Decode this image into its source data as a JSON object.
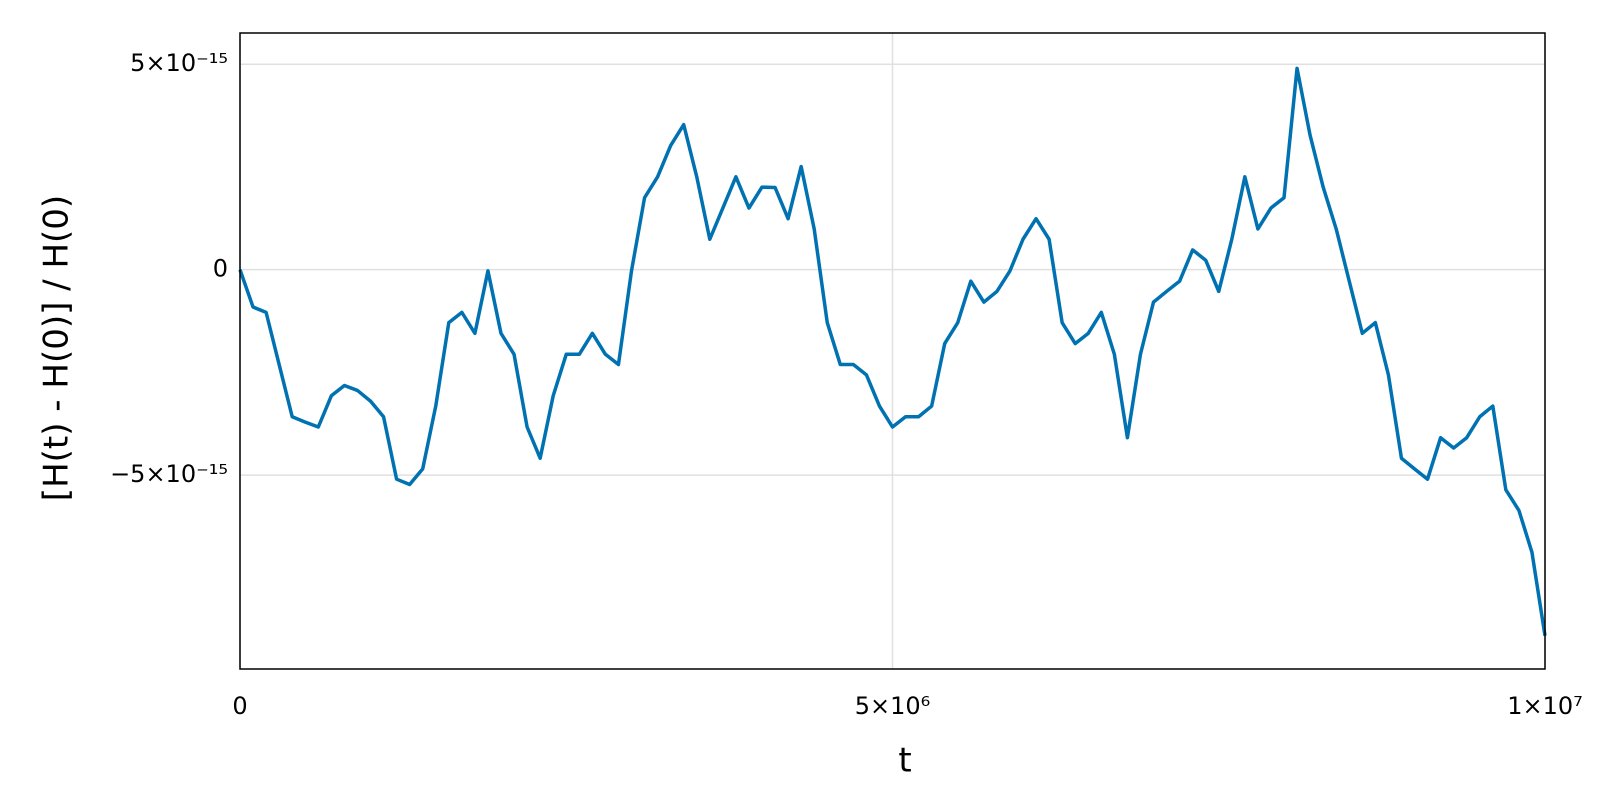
{
  "chart_data": {
    "type": "line",
    "xlabel": "t",
    "ylabel": "[H(t) - H(0)] / H(0)",
    "color": "#0072b2",
    "grid": true,
    "xlim": [
      0,
      10000000
    ],
    "ylim": [
      -9.72e-15,
      5.76e-15
    ],
    "xticks": [
      0,
      {
        "value": 5000000,
        "label": "5×10⁶"
      },
      {
        "value": 10000000,
        "label": "1×10⁷"
      }
    ],
    "yticks": [
      {
        "value": -5e-15,
        "label": "−5×10⁻¹⁵"
      },
      0,
      {
        "value": 5e-15,
        "label": "5×10⁻¹⁵"
      }
    ],
    "x": [
      0,
      100000,
      200000,
      300000,
      400000,
      500000,
      600000,
      700000,
      800000,
      900000,
      1000000,
      1100000,
      1200000,
      1300000,
      1400000,
      1500000,
      1600000,
      1700000,
      1800000,
      1900000,
      2000000,
      2100000,
      2200000,
      2300000,
      2400000,
      2500000,
      2600000,
      2700000,
      2800000,
      2900000,
      3000000,
      3100000,
      3200000,
      3300000,
      3400000,
      3500000,
      3600000,
      3700000,
      3800000,
      3900000,
      4000000,
      4100000,
      4200000,
      4300000,
      4400000,
      4500000,
      4600000,
      4700000,
      4800000,
      4900000,
      5000000,
      5100000,
      5200000,
      5300000,
      5400000,
      5500000,
      5600000,
      5700000,
      5800000,
      5900000,
      6000000,
      6100000,
      6200000,
      6300000,
      6400000,
      6500000,
      6600000,
      6700000,
      6800000,
      6900000,
      7000000,
      7100000,
      7200000,
      7300000,
      7400000,
      7500000,
      7600000,
      7700000,
      7800000,
      7900000,
      8000000,
      8100000,
      8200000,
      8300000,
      8400000,
      8500000,
      8600000,
      8700000,
      8800000,
      8900000,
      9000000,
      9100000,
      9200000,
      9300000,
      9400000,
      9500000,
      9600000,
      9700000,
      9800000,
      9900000,
      10000000
    ],
    "values": [
      0,
      -9.1e-16,
      -1.04e-15,
      -2.31e-15,
      -3.58e-15,
      -3.71e-15,
      -3.83e-15,
      -3.07e-15,
      -2.82e-15,
      -2.94e-15,
      -3.2e-15,
      -3.58e-15,
      -5.1e-15,
      -5.23e-15,
      -4.85e-15,
      -3.32e-15,
      -1.29e-15,
      -1.04e-15,
      -1.55e-15,
      -3e-17,
      -1.55e-15,
      -2.06e-15,
      -3.83e-15,
      -4.59e-15,
      -3.07e-15,
      -2.06e-15,
      -2.06e-15,
      -1.55e-15,
      -2.06e-15,
      -2.31e-15,
      -3e-17,
      1.75e-15,
      2.26e-15,
      3.02e-15,
      3.53e-15,
      2.26e-15,
      7.4e-16,
      1.5e-15,
      2.26e-15,
      1.5e-15,
      2.01e-15,
      2e-15,
      1.24e-15,
      2.51e-15,
      9.9e-16,
      -1.29e-15,
      -2.31e-15,
      -2.31e-15,
      -2.56e-15,
      -3.32e-15,
      -3.83e-15,
      -3.58e-15,
      -3.58e-15,
      -3.32e-15,
      -1.8e-15,
      -1.29e-15,
      -2.8e-16,
      -7.9e-16,
      -5.3e-16,
      -3e-17,
      7.4e-16,
      1.24e-15,
      7.4e-16,
      -1.29e-15,
      -1.8e-15,
      -1.55e-15,
      -1.04e-15,
      -2.06e-15,
      -4.09e-15,
      -2.06e-15,
      -7.9e-16,
      -5.3e-16,
      -2.8e-16,
      4.8e-16,
      2.3e-16,
      -5.3e-16,
      7.4e-16,
      2.26e-15,
      9.9e-16,
      1.5e-15,
      1.75e-15,
      4.9e-15,
      3.27e-15,
      2.01e-15,
      9.9e-16,
      -2.8e-16,
      -1.55e-15,
      -1.29e-15,
      -2.56e-15,
      -4.59e-15,
      -4.85e-15,
      -5.1e-15,
      -4.09e-15,
      -4.34e-15,
      -4.09e-15,
      -3.58e-15,
      -3.32e-15,
      -5.36e-15,
      -5.86e-15,
      -6.88e-15,
      -8.91e-15
    ]
  }
}
